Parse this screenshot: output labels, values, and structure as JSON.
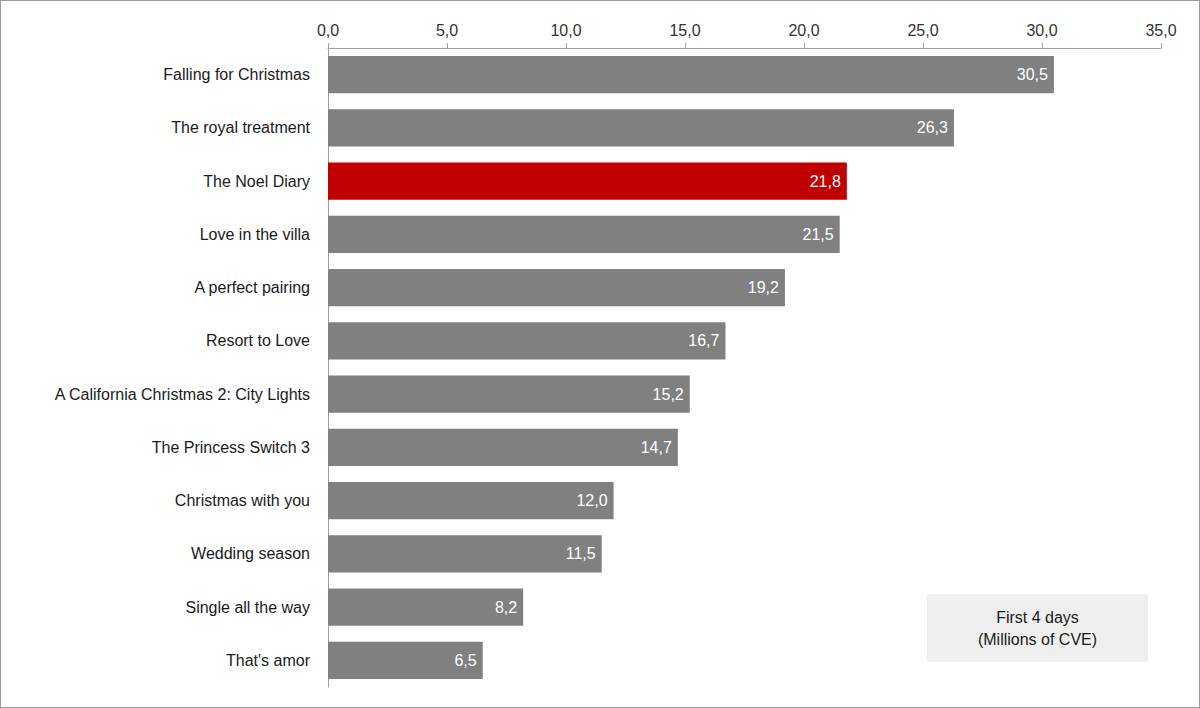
{
  "chart_data": {
    "type": "bar",
    "orientation": "horizontal",
    "categories": [
      "Falling for Christmas",
      "The royal treatment",
      "The Noel Diary",
      "Love in the villa",
      "A perfect pairing",
      "Resort to Love",
      "A California Christmas 2: City Lights",
      "The Princess Switch 3",
      "Christmas with you",
      "Wedding season",
      "Single all the way",
      "That's amor"
    ],
    "values": [
      30.5,
      26.3,
      21.8,
      21.5,
      19.2,
      16.7,
      15.2,
      14.7,
      12.0,
      11.5,
      8.2,
      6.5
    ],
    "value_labels": [
      "30,5",
      "26,3",
      "21,8",
      "21,5",
      "19,2",
      "16,7",
      "15,2",
      "14,7",
      "12,0",
      "11,5",
      "8,2",
      "6,5"
    ],
    "colors": [
      "#808080",
      "#808080",
      "#c00000",
      "#808080",
      "#808080",
      "#808080",
      "#808080",
      "#808080",
      "#808080",
      "#808080",
      "#808080",
      "#808080"
    ],
    "xlim": [
      0,
      35
    ],
    "xticks": [
      {
        "value": 0,
        "label": "0,0"
      },
      {
        "value": 5,
        "label": "5,0"
      },
      {
        "value": 10,
        "label": "10,0"
      },
      {
        "value": 15,
        "label": "15,0"
      },
      {
        "value": 20,
        "label": "20,0"
      },
      {
        "value": 25,
        "label": "25,0"
      },
      {
        "value": 30,
        "label": "30,0"
      },
      {
        "value": 35,
        "label": "35,0"
      }
    ],
    "annotation": "First 4 days\n(Millions of CVE)",
    "grid": false,
    "data_labels": true
  }
}
